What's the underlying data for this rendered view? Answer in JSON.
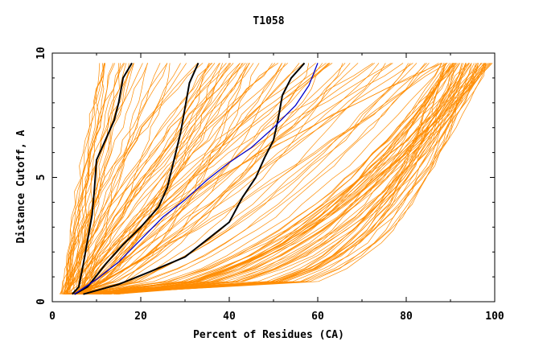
{
  "chart_data": {
    "type": "line",
    "title": "T1058",
    "xlabel": "Percent of Residues (CA)",
    "ylabel": "Distance Cutoff, A",
    "xlim": [
      0,
      100
    ],
    "ylim": [
      0,
      10
    ],
    "x_ticks": [
      0,
      20,
      40,
      60,
      80,
      100
    ],
    "x_tick_labels": [
      "0",
      "20",
      "40",
      "60",
      "80",
      "100"
    ],
    "y_ticks": [
      0,
      5,
      10
    ],
    "y_tick_labels": [
      "0",
      "5",
      "10"
    ],
    "grid": false,
    "legend": "none",
    "colors": {
      "bundle": "#ff8c00",
      "highlight": "#000000",
      "reference": "#0000cc",
      "axis": "#000000"
    },
    "bundle_count": 150,
    "bundle_note": "orange GDT curves for all submitted models (approximated envelope)",
    "highlight_series": [
      {
        "color": "#000000",
        "points": [
          [
            4.5,
            0.3
          ],
          [
            6,
            0.6
          ],
          [
            7,
            1.5
          ],
          [
            8,
            2.5
          ],
          [
            9,
            3.5
          ],
          [
            9.5,
            4.5
          ],
          [
            10,
            5.7
          ],
          [
            12,
            6.5
          ],
          [
            14,
            7.3
          ],
          [
            15,
            8
          ],
          [
            16,
            9
          ],
          [
            18,
            9.6
          ]
        ]
      },
      {
        "color": "#000000",
        "points": [
          [
            5,
            0.3
          ],
          [
            8,
            0.6
          ],
          [
            12,
            1.5
          ],
          [
            16,
            2.3
          ],
          [
            20,
            3
          ],
          [
            24,
            3.8
          ],
          [
            26,
            4.6
          ],
          [
            27.5,
            5.7
          ],
          [
            29,
            6.8
          ],
          [
            30,
            7.8
          ],
          [
            31,
            8.8
          ],
          [
            33,
            9.6
          ]
        ]
      },
      {
        "color": "#000000",
        "points": [
          [
            7,
            0.3
          ],
          [
            15,
            0.7
          ],
          [
            22,
            1.2
          ],
          [
            30,
            1.8
          ],
          [
            35,
            2.5
          ],
          [
            40,
            3.2
          ],
          [
            43,
            4.2
          ],
          [
            46,
            5
          ],
          [
            48,
            5.8
          ],
          [
            50,
            6.5
          ],
          [
            51,
            7.3
          ],
          [
            52,
            8.3
          ],
          [
            54,
            9
          ],
          [
            57,
            9.6
          ]
        ]
      }
    ],
    "reference_series": [
      {
        "color": "#0000cc",
        "points": [
          [
            5,
            0.3
          ],
          [
            10,
            0.9
          ],
          [
            15,
            1.6
          ],
          [
            20,
            2.5
          ],
          [
            25,
            3.4
          ],
          [
            30,
            4.1
          ],
          [
            35,
            4.9
          ],
          [
            40,
            5.6
          ],
          [
            45,
            6.2
          ],
          [
            50,
            7
          ],
          [
            55,
            7.9
          ],
          [
            58,
            8.7
          ],
          [
            60,
            9.6
          ]
        ]
      }
    ]
  }
}
